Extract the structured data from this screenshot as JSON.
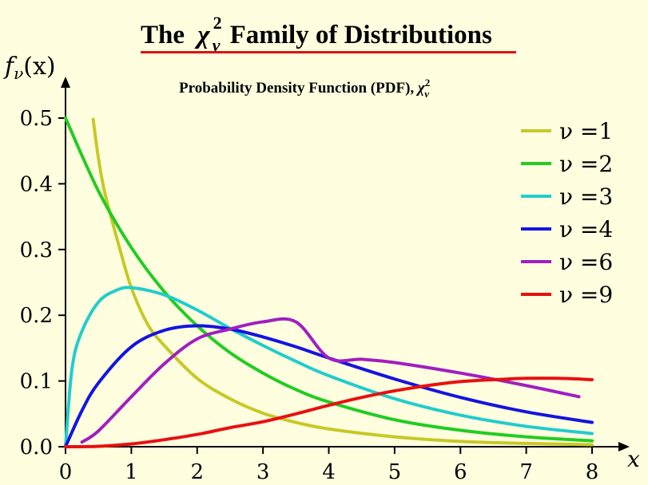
{
  "title": {
    "before": "The",
    "chi": "χ",
    "sup": "2",
    "sub": "ν",
    "after": "Family of Distributions"
  },
  "subtitle": {
    "text": "Probability Density Function (PDF),",
    "chi": "χ",
    "sup": "2",
    "sub": "ν"
  },
  "axis_labels": {
    "y": "f",
    "y_sub": "ν",
    "y_paren": "(x)",
    "x": "x"
  },
  "colors": {
    "background": "#FFFFE0",
    "title_underline": "#E01010"
  },
  "chart_data": {
    "type": "line",
    "title": "The χ²_ν Family of Distributions",
    "subtitle": "Probability Density Function (PDF), χ²_ν",
    "xlabel": "x",
    "ylabel": "f_ν(x)",
    "xlim": [
      0,
      8
    ],
    "ylim": [
      0,
      0.5
    ],
    "x_ticks": [
      "0",
      "1",
      "2",
      "3",
      "4",
      "5",
      "6",
      "7",
      "8"
    ],
    "y_ticks": [
      "0.0",
      "0.1",
      "0.2",
      "0.3",
      "0.4",
      "0.5"
    ],
    "grid": false,
    "legend_position": "top-right",
    "series": [
      {
        "name": "ν =1",
        "color": "#C8C828",
        "x": [
          0.42,
          0.5,
          0.6,
          0.8,
          1,
          1.25,
          1.5,
          2,
          2.5,
          3,
          3.5,
          4,
          5,
          6,
          7,
          8
        ],
        "y": [
          0.498,
          0.439,
          0.385,
          0.31,
          0.242,
          0.186,
          0.154,
          0.104,
          0.073,
          0.051,
          0.037,
          0.027,
          0.015,
          0.008,
          0.005,
          0.003
        ]
      },
      {
        "name": "ν =2",
        "color": "#22CC22",
        "x": [
          0,
          0.5,
          1,
          1.5,
          2,
          2.5,
          3,
          3.5,
          4,
          5,
          6,
          7,
          8
        ],
        "y": [
          0.5,
          0.389,
          0.303,
          0.236,
          0.184,
          0.143,
          0.112,
          0.087,
          0.068,
          0.041,
          0.025,
          0.015,
          0.009
        ]
      },
      {
        "name": "ν =3",
        "color": "#22CCCC",
        "x": [
          0,
          0.1,
          0.25,
          0.5,
          0.75,
          1,
          1.5,
          2,
          2.5,
          3,
          3.5,
          4,
          5,
          6,
          7,
          8
        ],
        "y": [
          0,
          0.12,
          0.176,
          0.22,
          0.237,
          0.242,
          0.231,
          0.208,
          0.18,
          0.154,
          0.13,
          0.108,
          0.073,
          0.048,
          0.031,
          0.02
        ]
      },
      {
        "name": "ν =4",
        "color": "#1414E0",
        "x": [
          0,
          0.25,
          0.5,
          1,
          1.5,
          2,
          2.5,
          3,
          3.5,
          4,
          5,
          6,
          7,
          8
        ],
        "y": [
          0,
          0.055,
          0.097,
          0.152,
          0.177,
          0.184,
          0.179,
          0.167,
          0.152,
          0.135,
          0.103,
          0.075,
          0.053,
          0.037
        ]
      },
      {
        "name": "ν =6",
        "color": "#A020C0",
        "x": [
          0.25,
          0.5,
          1,
          1.5,
          2,
          2.5,
          3,
          3.5,
          4,
          4.5,
          5,
          6,
          7,
          7.8
        ],
        "y": [
          0.007,
          0.024,
          0.076,
          0.126,
          0.164,
          0.179,
          0.19,
          0.19,
          0.135,
          0.133,
          0.128,
          0.112,
          0.093,
          0.076
        ]
      },
      {
        "name": "ν =9",
        "color": "#E81010",
        "x": [
          0,
          0.5,
          1,
          1.5,
          2,
          2.5,
          3,
          3.5,
          4,
          4.5,
          5,
          5.5,
          6,
          6.5,
          7,
          7.5,
          8
        ],
        "y": [
          0,
          0.0006,
          0.0042,
          0.0107,
          0.0187,
          0.029,
          0.038,
          0.05,
          0.063,
          0.075,
          0.085,
          0.093,
          0.099,
          0.102,
          0.104,
          0.104,
          0.102
        ]
      }
    ]
  }
}
